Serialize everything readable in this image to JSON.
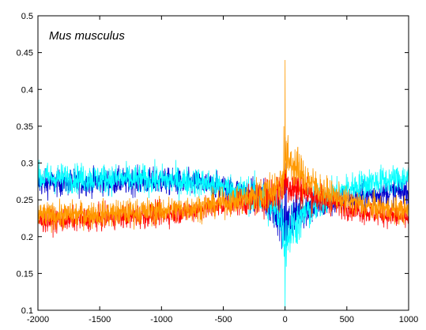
{
  "chart_data": {
    "type": "line",
    "title": "Mus musculus",
    "xlabel": "",
    "ylabel": "",
    "xlim": [
      -2000,
      1000
    ],
    "ylim": [
      0.1,
      0.5
    ],
    "xticks": [
      -2000,
      -1500,
      -1000,
      -500,
      0,
      500,
      1000
    ],
    "xtick_labels": [
      "-2000",
      "-1500",
      "-1000",
      "-500",
      "0",
      "500",
      "1000"
    ],
    "yticks": [
      0.1,
      0.15,
      0.2,
      0.25,
      0.3,
      0.35,
      0.4,
      0.45,
      0.5
    ],
    "ytick_labels": [
      "0.1",
      "0.15",
      "0.2",
      "0.25",
      "0.3",
      "0.35",
      "0.4",
      "0.45",
      "0.5"
    ],
    "grid": false,
    "legend": "none",
    "series": [
      {
        "color": "#0000cc",
        "noise": 0.009,
        "x": [
          -2000,
          -1500,
          -1000,
          -700,
          -500,
          -300,
          -150,
          -50,
          0,
          50,
          150,
          300,
          500,
          700,
          1000
        ],
        "y": [
          0.272,
          0.275,
          0.275,
          0.272,
          0.266,
          0.258,
          0.249,
          0.236,
          0.205,
          0.228,
          0.238,
          0.244,
          0.25,
          0.257,
          0.262
        ],
        "spikes": [
          [
            0,
            0.335
          ],
          [
            10,
            0.3
          ],
          [
            25,
            0.285
          ]
        ]
      },
      {
        "color": "#00ffff",
        "noise": 0.01,
        "x": [
          -2000,
          -1500,
          -1000,
          -700,
          -500,
          -300,
          -150,
          -50,
          0,
          50,
          150,
          300,
          500,
          700,
          1000
        ],
        "y": [
          0.28,
          0.279,
          0.277,
          0.274,
          0.268,
          0.258,
          0.248,
          0.236,
          0.195,
          0.21,
          0.23,
          0.25,
          0.265,
          0.274,
          0.28
        ],
        "spikes": [
          [
            0,
            0.1
          ],
          [
            5,
            0.18
          ],
          [
            -5,
            0.41
          ]
        ]
      },
      {
        "color": "#ff0000",
        "noise": 0.008,
        "x": [
          -2000,
          -1500,
          -1000,
          -700,
          -500,
          -300,
          -150,
          -50,
          0,
          50,
          150,
          300,
          500,
          700,
          1000
        ],
        "y": [
          0.222,
          0.225,
          0.23,
          0.236,
          0.242,
          0.248,
          0.254,
          0.262,
          0.275,
          0.268,
          0.262,
          0.25,
          0.24,
          0.232,
          0.225
        ],
        "spikes": [
          [
            0,
            0.3
          ],
          [
            15,
            0.29
          ]
        ]
      },
      {
        "color": "#ff9900",
        "noise": 0.009,
        "x": [
          -2000,
          -1500,
          -1000,
          -700,
          -500,
          -300,
          -150,
          -50,
          0,
          20,
          60,
          150,
          300,
          500,
          700,
          1000
        ],
        "y": [
          0.228,
          0.231,
          0.235,
          0.24,
          0.246,
          0.252,
          0.26,
          0.268,
          0.29,
          0.305,
          0.3,
          0.28,
          0.262,
          0.248,
          0.24,
          0.235
        ],
        "spikes": [
          [
            0,
            0.44
          ],
          [
            -10,
            0.35
          ],
          [
            10,
            0.33
          ]
        ]
      }
    ]
  }
}
